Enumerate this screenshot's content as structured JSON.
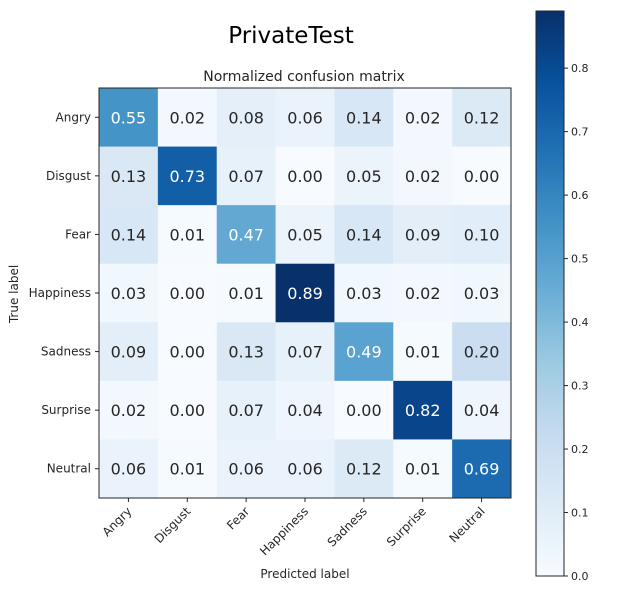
{
  "figure_title": "PrivateTest",
  "chart_data": {
    "type": "heatmap",
    "title": "Normalized confusion matrix",
    "xlabel": "Predicted label",
    "ylabel": "True label",
    "x_categories": [
      "Angry",
      "Disgust",
      "Fear",
      "Happiness",
      "Sadness",
      "Surprise",
      "Neutral"
    ],
    "y_categories": [
      "Angry",
      "Disgust",
      "Fear",
      "Happiness",
      "Sadness",
      "Surprise",
      "Neutral"
    ],
    "values": [
      [
        0.55,
        0.02,
        0.08,
        0.06,
        0.14,
        0.02,
        0.12
      ],
      [
        0.13,
        0.73,
        0.07,
        0.0,
        0.05,
        0.02,
        0.0
      ],
      [
        0.14,
        0.01,
        0.47,
        0.05,
        0.14,
        0.09,
        0.1
      ],
      [
        0.03,
        0.0,
        0.01,
        0.89,
        0.03,
        0.02,
        0.03
      ],
      [
        0.09,
        0.0,
        0.13,
        0.07,
        0.49,
        0.01,
        0.2
      ],
      [
        0.02,
        0.0,
        0.07,
        0.04,
        0.0,
        0.82,
        0.04
      ],
      [
        0.06,
        0.01,
        0.06,
        0.06,
        0.12,
        0.01,
        0.69
      ]
    ],
    "value_labels": [
      [
        "0.55",
        "0.02",
        "0.08",
        "0.06",
        "0.14",
        "0.02",
        "0.12"
      ],
      [
        "0.13",
        "0.73",
        "0.07",
        "0.00",
        "0.05",
        "0.02",
        "0.00"
      ],
      [
        "0.14",
        "0.01",
        "0.47",
        "0.05",
        "0.14",
        "0.09",
        "0.10"
      ],
      [
        "0.03",
        "0.00",
        "0.01",
        "0.89",
        "0.03",
        "0.02",
        "0.03"
      ],
      [
        "0.09",
        "0.00",
        "0.13",
        "0.07",
        "0.49",
        "0.01",
        "0.20"
      ],
      [
        "0.02",
        "0.00",
        "0.07",
        "0.04",
        "0.00",
        "0.82",
        "0.04"
      ],
      [
        "0.06",
        "0.01",
        "0.06",
        "0.06",
        "0.12",
        "0.01",
        "0.69"
      ]
    ],
    "colorbar": {
      "range": [
        0.0,
        0.89
      ],
      "ticks": [
        0.0,
        0.1,
        0.2,
        0.3,
        0.4,
        0.5,
        0.6,
        0.7,
        0.8
      ],
      "tick_labels": [
        "0.0",
        "0.1",
        "0.2",
        "0.3",
        "0.4",
        "0.5",
        "0.6",
        "0.7",
        "0.8"
      ]
    },
    "colormap": "Blues",
    "colors": {
      "low": "#f7fbff",
      "high": "#08306b",
      "text_dark": "#262626",
      "text_light": "#ffffff"
    },
    "grid": false
  }
}
